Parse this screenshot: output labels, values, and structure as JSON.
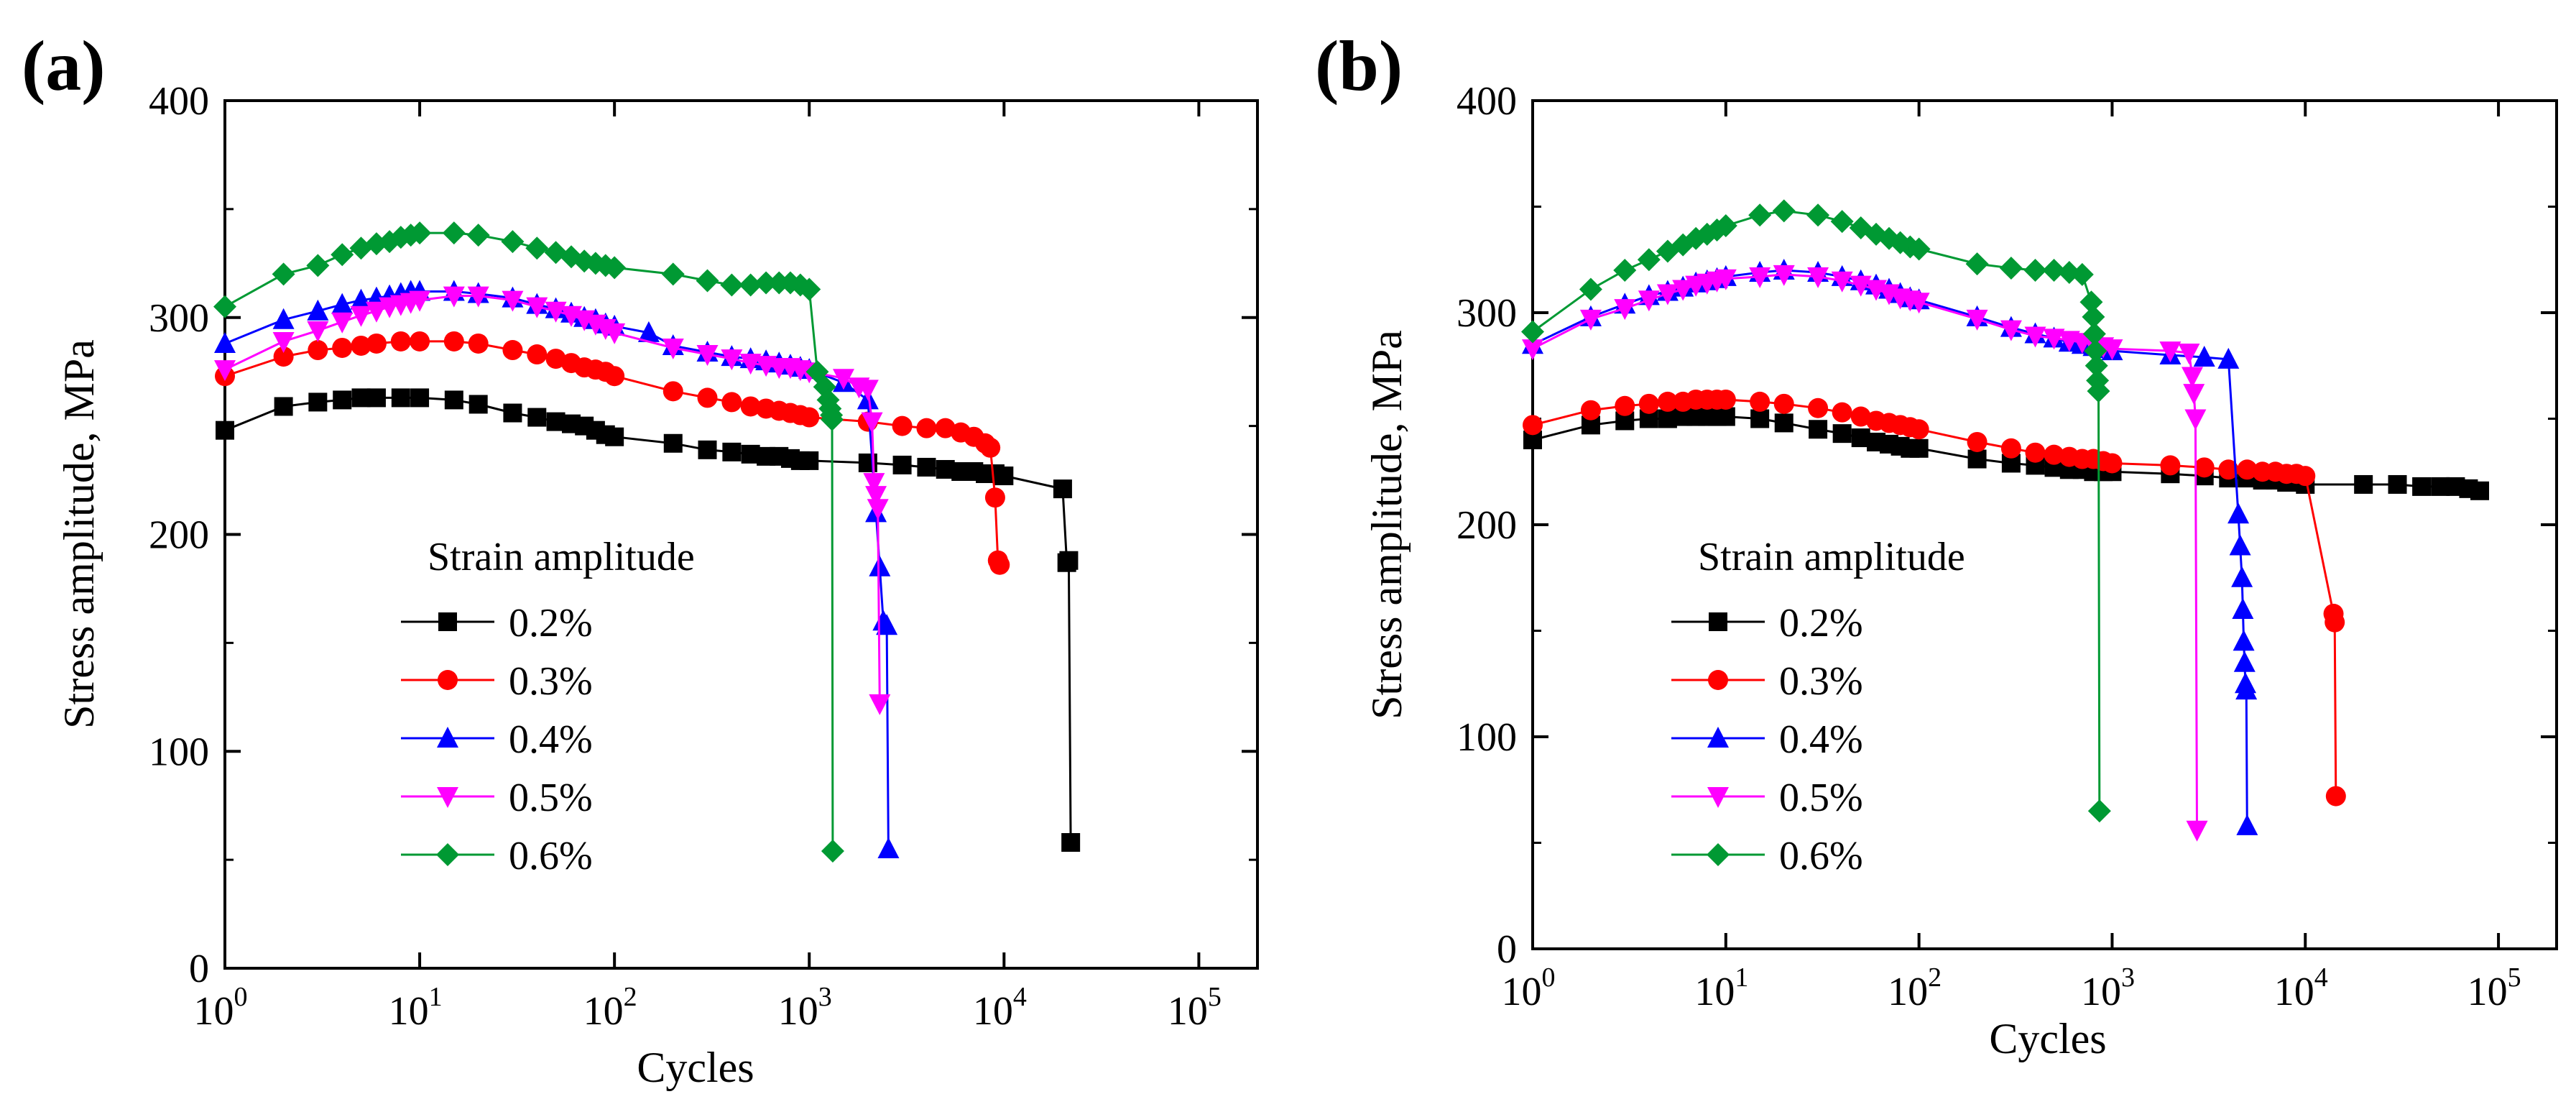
{
  "chart_data": [
    {
      "type": "line",
      "panel_label": "(a)",
      "xlabel": "Cycles",
      "ylabel": "Stress amplitude, MPa",
      "xscale": "log",
      "xlim": [
        1,
        200000
      ],
      "ylim": [
        0,
        400
      ],
      "x_ticks": [
        {
          "base": "10",
          "exp": "0"
        },
        {
          "base": "10",
          "exp": "1"
        },
        {
          "base": "10",
          "exp": "2"
        },
        {
          "base": "10",
          "exp": "3"
        },
        {
          "base": "10",
          "exp": "4"
        },
        {
          "base": "10",
          "exp": "5"
        }
      ],
      "y_ticks": [
        "0",
        "100",
        "200",
        "300",
        "400"
      ],
      "legend_title": "Strain amplitude",
      "legend_position": "lower-left",
      "series": [
        {
          "name": "0.2%",
          "color": "#000000",
          "marker": "square",
          "x": [
            1,
            2,
            3,
            4,
            5,
            6,
            8,
            10,
            15,
            20,
            30,
            40,
            50,
            60,
            70,
            80,
            90,
            100,
            200,
            300,
            400,
            500,
            600,
            700,
            800,
            900,
            1000,
            2000,
            3000,
            4000,
            5000,
            6000,
            7000,
            8000,
            9000,
            10000,
            20000,
            21000,
            21500,
            22000
          ],
          "y": [
            248,
            259,
            261,
            262,
            263,
            263,
            263,
            263,
            262,
            260,
            256,
            254,
            252,
            251,
            250,
            248,
            246,
            245,
            242,
            239,
            238,
            237,
            236,
            236,
            235,
            234,
            234,
            233,
            232,
            231,
            230,
            229,
            229,
            228,
            228,
            227,
            221,
            187,
            188,
            58
          ]
        },
        {
          "name": "0.3%",
          "color": "#ff0000",
          "marker": "circle",
          "x": [
            1,
            2,
            3,
            4,
            5,
            6,
            8,
            10,
            15,
            20,
            30,
            40,
            50,
            60,
            70,
            80,
            90,
            100,
            200,
            300,
            400,
            500,
            600,
            700,
            800,
            900,
            1000,
            2000,
            3000,
            4000,
            5000,
            6000,
            7000,
            8000,
            8500,
            9000,
            9300,
            9500
          ],
          "y": [
            273,
            282,
            285,
            286,
            287,
            288,
            289,
            289,
            289,
            288,
            285,
            283,
            281,
            279,
            277,
            276,
            275,
            273,
            266,
            263,
            261,
            259,
            258,
            257,
            256,
            255,
            254,
            252,
            250,
            249,
            249,
            247,
            245,
            242,
            240,
            217,
            188,
            186
          ]
        },
        {
          "name": "0.4%",
          "color": "#0000ff",
          "marker": "triangle-up",
          "x": [
            1,
            2,
            3,
            4,
            5,
            6,
            7,
            8,
            9,
            10,
            15,
            20,
            30,
            40,
            50,
            60,
            70,
            80,
            90,
            100,
            150,
            200,
            300,
            400,
            500,
            600,
            700,
            800,
            900,
            1000,
            1500,
            2000,
            2200,
            2300,
            2400,
            2500,
            2550
          ],
          "y": [
            288,
            299,
            303,
            306,
            308,
            309,
            310,
            311,
            312,
            312,
            312,
            311,
            309,
            306,
            304,
            302,
            300,
            299,
            297,
            296,
            293,
            287,
            284,
            282,
            281,
            280,
            279,
            278,
            277,
            276,
            270,
            262,
            210,
            185,
            160,
            158,
            55
          ]
        },
        {
          "name": "0.5%",
          "color": "#ff00ff",
          "marker": "triangle-down",
          "x": [
            1,
            2,
            3,
            4,
            5,
            6,
            7,
            8,
            9,
            10,
            15,
            20,
            30,
            40,
            50,
            60,
            70,
            80,
            90,
            100,
            200,
            300,
            400,
            500,
            600,
            700,
            800,
            900,
            1000,
            1500,
            1800,
            2000,
            2100,
            2150,
            2200,
            2250,
            2300
          ],
          "y": [
            276,
            289,
            294,
            298,
            301,
            303,
            305,
            306,
            307,
            308,
            310,
            310,
            308,
            305,
            303,
            301,
            299,
            297,
            295,
            293,
            286,
            283,
            281,
            279,
            278,
            277,
            277,
            276,
            275,
            272,
            268,
            267,
            252,
            224,
            218,
            212,
            122
          ]
        },
        {
          "name": "0.6%",
          "color": "#009933",
          "marker": "diamond",
          "x": [
            1,
            2,
            3,
            4,
            5,
            6,
            7,
            8,
            9,
            10,
            15,
            20,
            30,
            40,
            50,
            60,
            70,
            80,
            90,
            100,
            200,
            300,
            400,
            500,
            600,
            700,
            800,
            900,
            1000,
            1100,
            1200,
            1250,
            1280,
            1300,
            1310,
            1320
          ],
          "y": [
            305,
            320,
            324,
            329,
            332,
            334,
            335,
            337,
            338,
            339,
            339,
            338,
            335,
            332,
            330,
            328,
            326,
            325,
            324,
            323,
            320,
            317,
            315,
            315,
            316,
            316,
            316,
            315,
            313,
            275,
            268,
            262,
            258,
            255,
            253,
            54
          ]
        }
      ]
    },
    {
      "type": "line",
      "panel_label": "(b)",
      "xlabel": "Cycles",
      "ylabel": "Stress amplitude, MPa",
      "xscale": "log",
      "xlim": [
        1,
        200000
      ],
      "ylim": [
        0,
        400
      ],
      "x_ticks": [
        {
          "base": "10",
          "exp": "0"
        },
        {
          "base": "10",
          "exp": "1"
        },
        {
          "base": "10",
          "exp": "2"
        },
        {
          "base": "10",
          "exp": "3"
        },
        {
          "base": "10",
          "exp": "4"
        },
        {
          "base": "10",
          "exp": "5"
        }
      ],
      "y_ticks": [
        "0",
        "100",
        "200",
        "300",
        "400"
      ],
      "legend_title": "Strain amplitude",
      "legend_position": "lower-left",
      "series": [
        {
          "name": "0.2%",
          "color": "#000000",
          "marker": "square",
          "x": [
            1,
            2,
            3,
            4,
            5,
            6,
            7,
            8,
            9,
            10,
            15,
            20,
            30,
            40,
            50,
            60,
            70,
            80,
            90,
            100,
            200,
            300,
            400,
            500,
            600,
            700,
            800,
            900,
            1000,
            2000,
            3000,
            4000,
            5000,
            6000,
            7000,
            8000,
            9000,
            10000,
            20000,
            30000,
            40000,
            50000,
            60000,
            70000,
            80000
          ],
          "y": [
            240,
            247,
            249,
            250,
            250,
            251,
            251,
            251,
            251,
            251,
            250,
            248,
            245,
            243,
            241,
            239,
            238,
            237,
            236,
            236,
            231,
            229,
            228,
            227,
            226,
            226,
            225,
            225,
            225,
            224,
            223,
            222,
            222,
            221,
            221,
            220,
            220,
            219,
            219,
            219,
            218,
            218,
            218,
            217,
            216
          ]
        },
        {
          "name": "0.3%",
          "color": "#ff0000",
          "marker": "circle",
          "x": [
            1,
            2,
            3,
            4,
            5,
            6,
            7,
            8,
            9,
            10,
            15,
            20,
            30,
            40,
            50,
            60,
            70,
            80,
            90,
            100,
            200,
            300,
            400,
            500,
            600,
            700,
            800,
            900,
            1000,
            2000,
            3000,
            4000,
            5000,
            6000,
            7000,
            8000,
            9000,
            10000,
            14000,
            14200,
            14400
          ],
          "y": [
            247,
            254,
            256,
            257,
            258,
            258,
            259,
            259,
            259,
            259,
            258,
            257,
            255,
            253,
            251,
            249,
            248,
            247,
            246,
            245,
            239,
            236,
            234,
            233,
            232,
            231,
            231,
            230,
            229,
            228,
            227,
            226,
            226,
            225,
            225,
            224,
            224,
            223,
            158,
            154,
            72
          ]
        },
        {
          "name": "0.4%",
          "color": "#0000ff",
          "marker": "triangle-up",
          "x": [
            1,
            2,
            3,
            4,
            5,
            6,
            7,
            8,
            9,
            10,
            15,
            20,
            30,
            40,
            50,
            60,
            70,
            80,
            90,
            100,
            200,
            300,
            400,
            500,
            600,
            700,
            800,
            900,
            1000,
            2000,
            3000,
            4000,
            4500,
            4600,
            4700,
            4750,
            4800,
            4850,
            4900,
            4950,
            5000
          ],
          "y": [
            285,
            298,
            304,
            308,
            310,
            312,
            314,
            315,
            316,
            317,
            319,
            320,
            319,
            317,
            315,
            313,
            311,
            309,
            307,
            306,
            298,
            293,
            290,
            288,
            286,
            285,
            284,
            283,
            282,
            280,
            279,
            278,
            205,
            190,
            175,
            160,
            145,
            135,
            125,
            122,
            58
          ]
        },
        {
          "name": "0.5%",
          "color": "#ff00ff",
          "marker": "triangle-down",
          "x": [
            1,
            2,
            3,
            4,
            5,
            6,
            7,
            8,
            9,
            10,
            15,
            20,
            30,
            40,
            50,
            60,
            70,
            80,
            90,
            100,
            200,
            300,
            400,
            500,
            600,
            700,
            800,
            900,
            1000,
            2000,
            2500,
            2600,
            2650,
            2700,
            2750
          ],
          "y": [
            283,
            297,
            302,
            306,
            309,
            311,
            313,
            314,
            315,
            316,
            317,
            318,
            317,
            315,
            313,
            311,
            309,
            307,
            306,
            305,
            297,
            292,
            289,
            288,
            287,
            286,
            285,
            284,
            283,
            282,
            281,
            270,
            262,
            250,
            56
          ]
        },
        {
          "name": "0.6%",
          "color": "#009933",
          "marker": "diamond",
          "x": [
            1,
            2,
            3,
            4,
            5,
            6,
            7,
            8,
            9,
            10,
            15,
            20,
            30,
            40,
            50,
            60,
            70,
            80,
            90,
            100,
            200,
            300,
            400,
            500,
            600,
            700,
            780,
            800,
            810,
            820,
            830,
            840,
            850,
            860
          ],
          "y": [
            291,
            311,
            320,
            325,
            329,
            332,
            335,
            337,
            339,
            341,
            346,
            348,
            346,
            343,
            340,
            337,
            335,
            333,
            331,
            330,
            323,
            321,
            320,
            320,
            319,
            318,
            305,
            298,
            290,
            282,
            275,
            268,
            263,
            65
          ]
        }
      ]
    }
  ]
}
